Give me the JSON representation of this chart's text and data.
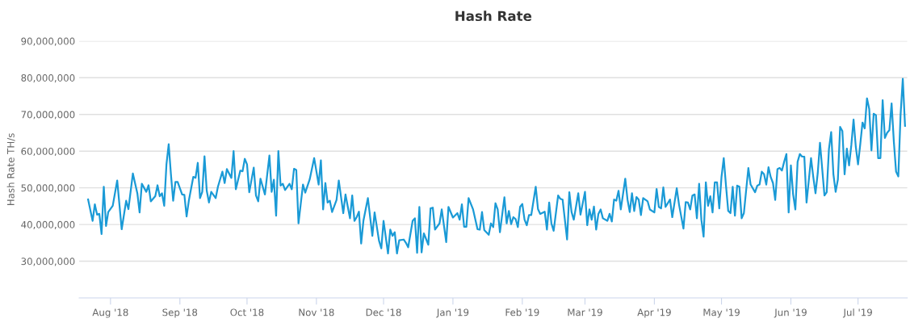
{
  "chart_data": {
    "type": "line",
    "title": "Hash Rate",
    "ylabel": "Hash Rate TH/s",
    "grid": "y",
    "marker": "none",
    "line_style": "solid",
    "xlim": [
      "2018-07-18",
      "2019-07-23"
    ],
    "ylim": [
      20000000,
      90000000
    ],
    "xticks": [
      {
        "value": "2018-08-01",
        "label": "Aug '18"
      },
      {
        "value": "2018-09-01",
        "label": "Sep '18"
      },
      {
        "value": "2018-10-01",
        "label": "Oct '18"
      },
      {
        "value": "2018-11-01",
        "label": "Nov '18"
      },
      {
        "value": "2018-12-01",
        "label": "Dec '18"
      },
      {
        "value": "2019-01-01",
        "label": "Jan '19"
      },
      {
        "value": "2019-02-01",
        "label": "Feb '19"
      },
      {
        "value": "2019-03-01",
        "label": "Mar '19"
      },
      {
        "value": "2019-04-01",
        "label": "Apr '19"
      },
      {
        "value": "2019-05-01",
        "label": "May '19"
      },
      {
        "value": "2019-06-01",
        "label": "Jun '19"
      },
      {
        "value": "2019-07-01",
        "label": "Jul '19"
      }
    ],
    "yticks": [
      {
        "value": 30000000,
        "label": "30,000,000"
      },
      {
        "value": 40000000,
        "label": "40,000,000"
      },
      {
        "value": 50000000,
        "label": "50,000,000"
      },
      {
        "value": 60000000,
        "label": "60,000,000"
      },
      {
        "value": 70000000,
        "label": "70,000,000"
      },
      {
        "value": 80000000,
        "label": "80,000,000"
      },
      {
        "value": 90000000,
        "label": "90,000,000"
      }
    ],
    "x": [
      "2018-07-22",
      "2018-07-24",
      "2018-07-25",
      "2018-07-26",
      "2018-07-27",
      "2018-07-28",
      "2018-07-29",
      "2018-07-30",
      "2018-07-31",
      "2018-08-02",
      "2018-08-04",
      "2018-08-06",
      "2018-08-08",
      "2018-08-09",
      "2018-08-11",
      "2018-08-13",
      "2018-08-14",
      "2018-08-15",
      "2018-08-17",
      "2018-08-18",
      "2018-08-19",
      "2018-08-21",
      "2018-08-22",
      "2018-08-23",
      "2018-08-24",
      "2018-08-25",
      "2018-08-26",
      "2018-08-27",
      "2018-08-28",
      "2018-08-29",
      "2018-08-30",
      "2018-08-31",
      "2018-09-02",
      "2018-09-03",
      "2018-09-04",
      "2018-09-05",
      "2018-09-07",
      "2018-09-08",
      "2018-09-09",
      "2018-09-10",
      "2018-09-11",
      "2018-09-12",
      "2018-09-13",
      "2018-09-14",
      "2018-09-15",
      "2018-09-17",
      "2018-09-18",
      "2018-09-20",
      "2018-09-21",
      "2018-09-22",
      "2018-09-24",
      "2018-09-25",
      "2018-09-26",
      "2018-09-28",
      "2018-09-29",
      "2018-09-30",
      "2018-10-01",
      "2018-10-02",
      "2018-10-04",
      "2018-10-05",
      "2018-10-06",
      "2018-10-07",
      "2018-10-09",
      "2018-10-11",
      "2018-10-12",
      "2018-10-13",
      "2018-10-14",
      "2018-10-15",
      "2018-10-16",
      "2018-10-17",
      "2018-10-18",
      "2018-10-20",
      "2018-10-21",
      "2018-10-22",
      "2018-10-23",
      "2018-10-24",
      "2018-10-26",
      "2018-10-27",
      "2018-10-29",
      "2018-10-31",
      "2018-11-02",
      "2018-11-03",
      "2018-11-04",
      "2018-11-05",
      "2018-11-06",
      "2018-11-07",
      "2018-11-08",
      "2018-11-10",
      "2018-11-11",
      "2018-11-13",
      "2018-11-14",
      "2018-11-15",
      "2018-11-16",
      "2018-11-17",
      "2018-11-18",
      "2018-11-19",
      "2018-11-20",
      "2018-11-21",
      "2018-11-22",
      "2018-11-24",
      "2018-11-26",
      "2018-11-27",
      "2018-11-29",
      "2018-11-30",
      "2018-12-01",
      "2018-12-03",
      "2018-12-04",
      "2018-12-05",
      "2018-12-06",
      "2018-12-07",
      "2018-12-08",
      "2018-12-10",
      "2018-12-11",
      "2018-12-12",
      "2018-12-14",
      "2018-12-15",
      "2018-12-16",
      "2018-12-17",
      "2018-12-18",
      "2018-12-19",
      "2018-12-21",
      "2018-12-22",
      "2018-12-23",
      "2018-12-24",
      "2018-12-26",
      "2018-12-27",
      "2018-12-29",
      "2018-12-30",
      "2019-01-01",
      "2019-01-03",
      "2019-01-04",
      "2019-01-05",
      "2019-01-06",
      "2019-01-07",
      "2019-01-08",
      "2019-01-10",
      "2019-01-12",
      "2019-01-13",
      "2019-01-14",
      "2019-01-15",
      "2019-01-17",
      "2019-01-18",
      "2019-01-19",
      "2019-01-20",
      "2019-01-21",
      "2019-01-22",
      "2019-01-24",
      "2019-01-25",
      "2019-01-26",
      "2019-01-27",
      "2019-01-28",
      "2019-01-29",
      "2019-01-30",
      "2019-01-31",
      "2019-02-01",
      "2019-02-02",
      "2019-02-03",
      "2019-02-04",
      "2019-02-05",
      "2019-02-07",
      "2019-02-08",
      "2019-02-09",
      "2019-02-11",
      "2019-02-12",
      "2019-02-13",
      "2019-02-14",
      "2019-02-15",
      "2019-02-17",
      "2019-02-18",
      "2019-02-19",
      "2019-02-21",
      "2019-02-22",
      "2019-02-23",
      "2019-02-24",
      "2019-02-26",
      "2019-02-27",
      "2019-03-01",
      "2019-03-02",
      "2019-03-03",
      "2019-03-04",
      "2019-03-05",
      "2019-03-06",
      "2019-03-07",
      "2019-03-08",
      "2019-03-09",
      "2019-03-11",
      "2019-03-12",
      "2019-03-13",
      "2019-03-14",
      "2019-03-15",
      "2019-03-16",
      "2019-03-17",
      "2019-03-19",
      "2019-03-20",
      "2019-03-21",
      "2019-03-22",
      "2019-03-23",
      "2019-03-24",
      "2019-03-25",
      "2019-03-26",
      "2019-03-27",
      "2019-03-29",
      "2019-03-30",
      "2019-04-01",
      "2019-04-02",
      "2019-04-03",
      "2019-04-04",
      "2019-04-05",
      "2019-04-06",
      "2019-04-08",
      "2019-04-09",
      "2019-04-11",
      "2019-04-12",
      "2019-04-14",
      "2019-04-15",
      "2019-04-16",
      "2019-04-17",
      "2019-04-18",
      "2019-04-19",
      "2019-04-20",
      "2019-04-21",
      "2019-04-22",
      "2019-04-23",
      "2019-04-24",
      "2019-04-25",
      "2019-04-26",
      "2019-04-27",
      "2019-04-28",
      "2019-04-29",
      "2019-04-30",
      "2019-05-01",
      "2019-05-02",
      "2019-05-03",
      "2019-05-04",
      "2019-05-05",
      "2019-05-06",
      "2019-05-07",
      "2019-05-08",
      "2019-05-09",
      "2019-05-10",
      "2019-05-11",
      "2019-05-13",
      "2019-05-14",
      "2019-05-16",
      "2019-05-17",
      "2019-05-18",
      "2019-05-19",
      "2019-05-20",
      "2019-05-21",
      "2019-05-22",
      "2019-05-23",
      "2019-05-24",
      "2019-05-25",
      "2019-05-26",
      "2019-05-27",
      "2019-05-28",
      "2019-05-29",
      "2019-05-30",
      "2019-05-31",
      "2019-06-01",
      "2019-06-02",
      "2019-06-03",
      "2019-06-04",
      "2019-06-05",
      "2019-06-06",
      "2019-06-07",
      "2019-06-08",
      "2019-06-10",
      "2019-06-11",
      "2019-06-12",
      "2019-06-13",
      "2019-06-14",
      "2019-06-15",
      "2019-06-16",
      "2019-06-17",
      "2019-06-18",
      "2019-06-19",
      "2019-06-20",
      "2019-06-21",
      "2019-06-22",
      "2019-06-23",
      "2019-06-24",
      "2019-06-25",
      "2019-06-26",
      "2019-06-27",
      "2019-06-28",
      "2019-06-29",
      "2019-06-30",
      "2019-07-01",
      "2019-07-02",
      "2019-07-03",
      "2019-07-04",
      "2019-07-05",
      "2019-07-06",
      "2019-07-07",
      "2019-07-08",
      "2019-07-09",
      "2019-07-10",
      "2019-07-11",
      "2019-07-12",
      "2019-07-13",
      "2019-07-14",
      "2019-07-15",
      "2019-07-16",
      "2019-07-17",
      "2019-07-18",
      "2019-07-19",
      "2019-07-20",
      "2019-07-21",
      "2019-07-22"
    ],
    "series": [
      {
        "color": "#1a9ad6",
        "values": [
          46800000,
          41000000,
          45500000,
          42700000,
          42900000,
          37400000,
          50300000,
          39600000,
          43400000,
          45100000,
          52000000,
          38700000,
          46500000,
          44200000,
          53900000,
          48500000,
          43300000,
          51100000,
          48900000,
          50700000,
          46300000,
          47700000,
          50700000,
          47700000,
          48500000,
          45100000,
          56400000,
          61900000,
          53700000,
          46500000,
          51600000,
          51600000,
          48200000,
          48100000,
          42200000,
          46500000,
          53000000,
          52700000,
          56800000,
          47200000,
          48900000,
          58600000,
          49200000,
          46000000,
          48900000,
          47200000,
          50300000,
          54400000,
          51300000,
          55100000,
          52700000,
          60000000,
          49600000,
          54700000,
          54500000,
          57900000,
          56400000,
          48800000,
          55500000,
          47900000,
          46300000,
          52500000,
          48200000,
          58800000,
          48900000,
          52200000,
          42400000,
          60000000,
          50600000,
          51100000,
          49400000,
          51100000,
          49600000,
          55200000,
          54900000,
          40300000,
          50900000,
          48700000,
          52300000,
          58100000,
          50900000,
          57500000,
          44100000,
          51300000,
          46000000,
          46500000,
          43400000,
          46700000,
          52000000,
          43100000,
          48200000,
          44900000,
          41700000,
          47900000,
          41000000,
          42000000,
          43500000,
          34800000,
          41000000,
          47200000,
          36900000,
          43300000,
          35500000,
          33500000,
          41000000,
          32100000,
          38600000,
          36900000,
          37900000,
          32100000,
          35700000,
          35900000,
          35000000,
          33800000,
          41000000,
          41700000,
          32300000,
          44800000,
          32400000,
          37600000,
          34500000,
          44400000,
          44600000,
          38600000,
          40300000,
          44100000,
          35200000,
          44800000,
          41900000,
          43100000,
          41300000,
          45500000,
          39400000,
          39400000,
          47200000,
          44100000,
          38700000,
          38600000,
          43400000,
          38500000,
          37200000,
          40300000,
          39300000,
          45800000,
          44100000,
          37900000,
          47400000,
          40300000,
          43700000,
          40100000,
          42000000,
          41500000,
          39300000,
          44800000,
          45600000,
          41300000,
          39800000,
          42600000,
          42600000,
          50300000,
          44200000,
          42900000,
          43500000,
          38600000,
          46000000,
          40300000,
          38300000,
          47900000,
          47000000,
          46800000,
          35900000,
          48800000,
          43400000,
          41300000,
          48500000,
          42700000,
          48900000,
          39800000,
          44100000,
          41300000,
          44900000,
          38600000,
          42900000,
          44100000,
          41700000,
          41000000,
          42900000,
          40800000,
          46800000,
          46500000,
          49200000,
          44100000,
          52500000,
          46800000,
          43400000,
          48500000,
          43700000,
          47500000,
          46800000,
          42600000,
          47200000,
          46300000,
          44100000,
          43300000,
          49700000,
          44800000,
          44400000,
          50100000,
          44800000,
          46800000,
          42000000,
          49900000,
          45500000,
          38900000,
          46100000,
          46000000,
          44100000,
          47900000,
          48200000,
          41700000,
          51100000,
          41300000,
          36700000,
          51500000,
          45100000,
          47700000,
          43300000,
          51500000,
          51500000,
          44400000,
          53000000,
          58100000,
          50600000,
          43700000,
          43100000,
          50300000,
          42400000,
          50600000,
          50300000,
          41700000,
          43100000,
          55400000,
          50900000,
          48800000,
          50600000,
          50900000,
          54400000,
          53700000,
          50900000,
          55600000,
          52900000,
          51300000,
          46700000,
          55100000,
          55400000,
          54700000,
          57100000,
          59200000,
          43300000,
          56100000,
          48200000,
          44100000,
          57100000,
          59200000,
          58500000,
          58500000,
          46000000,
          58100000,
          53000000,
          48500000,
          54000000,
          62300000,
          55100000,
          47900000,
          48800000,
          60500000,
          65200000,
          53700000,
          48900000,
          52300000,
          66600000,
          65500000,
          53700000,
          60700000,
          56100000,
          61600000,
          68600000,
          61200000,
          56400000,
          61900000,
          67800000,
          66200000,
          74400000,
          71500000,
          60200000,
          70200000,
          69800000,
          58100000,
          58100000,
          73900000,
          63600000,
          65000000,
          65700000,
          73000000,
          62600000,
          54400000,
          53100000,
          69800000,
          79700000,
          66900000
        ]
      }
    ]
  }
}
